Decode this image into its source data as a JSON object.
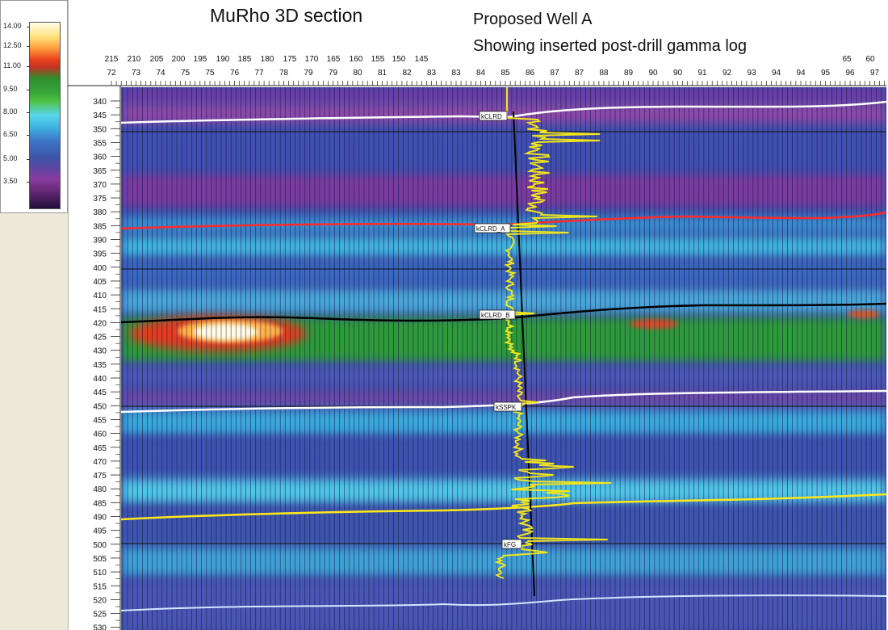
{
  "title": "MuRho 3D section",
  "well": {
    "name_line": "Proposed Well A",
    "description_line": "Showing inserted post-drill gamma log"
  },
  "colorbar": {
    "labels": [
      "14.00",
      "12.50",
      "11.00",
      "9.50",
      "8.00",
      "6.50",
      "5.00",
      "3.50"
    ]
  },
  "axis_top": {
    "upper_ticks": [
      "215",
      "210",
      "205",
      "200",
      "195",
      "190",
      "185",
      "180",
      "175",
      "170",
      "165",
      "160",
      "155",
      "150",
      "145",
      "65",
      "60"
    ],
    "lower_ticks": [
      "72",
      "73",
      "74",
      "75",
      "75",
      "76",
      "77",
      "78",
      "79",
      "79",
      "80",
      "81",
      "82",
      "83",
      "83",
      "84",
      "85",
      "86",
      "87",
      "87",
      "88",
      "89",
      "90",
      "90",
      "91",
      "92",
      "93",
      "94",
      "94",
      "95",
      "96",
      "97"
    ]
  },
  "axis_left": {
    "ticks": [
      "340",
      "345",
      "350",
      "355",
      "360",
      "365",
      "370",
      "375",
      "380",
      "385",
      "390",
      "395",
      "400",
      "405",
      "410",
      "415",
      "420",
      "425",
      "430",
      "435",
      "440",
      "445",
      "450",
      "455",
      "460",
      "465",
      "470",
      "475",
      "480",
      "485",
      "490",
      "495",
      "500",
      "505",
      "510",
      "515",
      "520",
      "525",
      "530"
    ]
  },
  "horizons": [
    {
      "label": "kCLRD",
      "color": "#ffffff"
    },
    {
      "label": "kCLRD_A",
      "color": "#ff2a2a"
    },
    {
      "label": "kCLRD_B",
      "color": "#000000"
    },
    {
      "label": "kSSPK",
      "color": "#ffffff"
    },
    {
      "label": "kFG",
      "color": "#ffe81a"
    }
  ],
  "colors": {
    "background_band": "#3d4fa8",
    "gamma_log": "#f2e61a",
    "wellbore": "#000000"
  }
}
